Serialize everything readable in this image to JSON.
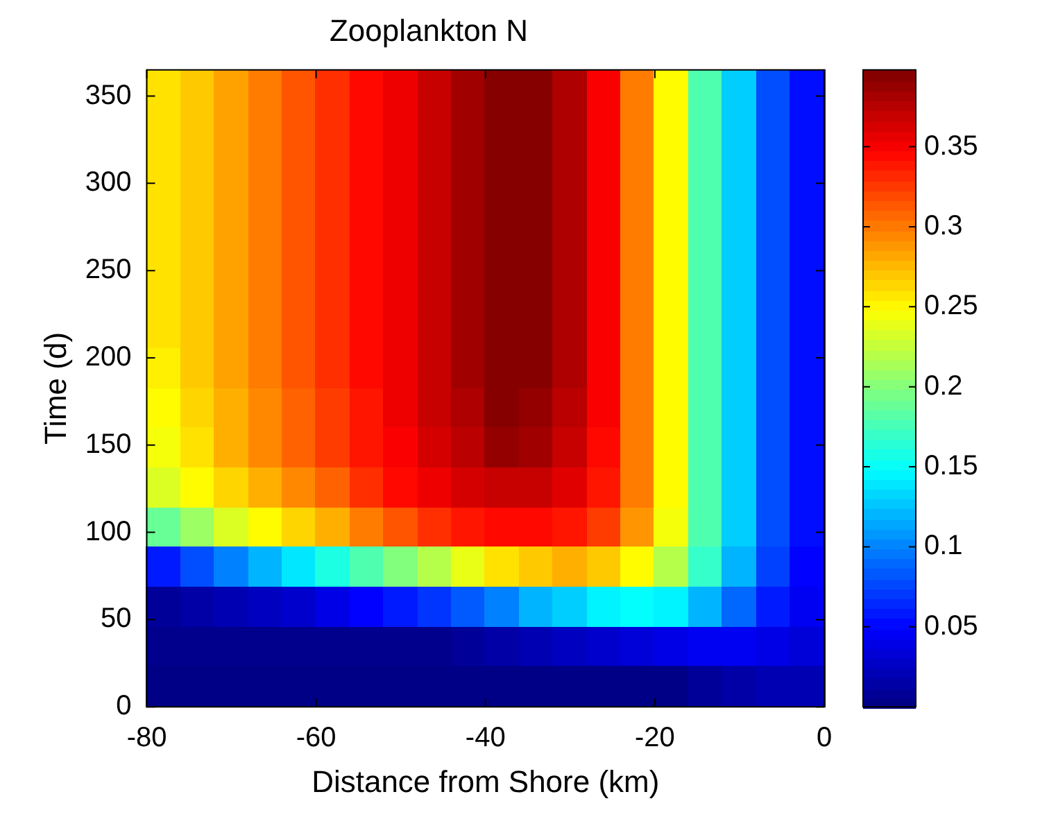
{
  "chart_data": {
    "type": "heatmap",
    "title": "Zooplankton N",
    "xlabel": "Distance from Shore (km)",
    "ylabel": "Time (d)",
    "x": [
      -78,
      -74,
      -70,
      -66,
      -62,
      -58,
      -54,
      -50,
      -46,
      -42,
      -38,
      -34,
      -30,
      -26,
      -22,
      -18,
      -14,
      -10,
      -6,
      -2
    ],
    "y": [
      353.6,
      330.8,
      308,
      285.2,
      262.3,
      239.5,
      216.7,
      193.9,
      171.1,
      148.3,
      125.5,
      102.7,
      79.8,
      57,
      34.2,
      11.4
    ],
    "xlim": [
      -80,
      0
    ],
    "xticks": [
      -80,
      -60,
      -40,
      -20,
      0
    ],
    "ylim": [
      0,
      365
    ],
    "yticks": [
      0,
      50,
      100,
      150,
      200,
      250,
      300,
      350
    ],
    "clim": [
      0,
      0.398
    ],
    "cticks": [
      0.05,
      0.1,
      0.15,
      0.2,
      0.25,
      0.3,
      0.35
    ],
    "cells": [
      [
        0.26,
        0.27,
        0.285,
        0.3,
        0.315,
        0.33,
        0.345,
        0.355,
        0.37,
        0.385,
        0.395,
        0.395,
        0.38,
        0.35,
        0.3,
        0.25,
        0.18,
        0.13,
        0.08,
        0.055
      ],
      [
        0.26,
        0.27,
        0.285,
        0.3,
        0.315,
        0.33,
        0.345,
        0.355,
        0.37,
        0.385,
        0.395,
        0.395,
        0.38,
        0.35,
        0.3,
        0.25,
        0.18,
        0.13,
        0.08,
        0.055
      ],
      [
        0.26,
        0.27,
        0.285,
        0.3,
        0.315,
        0.33,
        0.345,
        0.355,
        0.37,
        0.385,
        0.395,
        0.395,
        0.38,
        0.35,
        0.3,
        0.25,
        0.18,
        0.13,
        0.08,
        0.055
      ],
      [
        0.26,
        0.27,
        0.285,
        0.3,
        0.315,
        0.33,
        0.345,
        0.355,
        0.37,
        0.385,
        0.395,
        0.395,
        0.38,
        0.35,
        0.3,
        0.25,
        0.18,
        0.13,
        0.08,
        0.055
      ],
      [
        0.26,
        0.27,
        0.285,
        0.3,
        0.315,
        0.33,
        0.345,
        0.355,
        0.37,
        0.385,
        0.395,
        0.395,
        0.38,
        0.35,
        0.3,
        0.25,
        0.18,
        0.13,
        0.08,
        0.055
      ],
      [
        0.26,
        0.27,
        0.285,
        0.3,
        0.315,
        0.33,
        0.345,
        0.355,
        0.37,
        0.385,
        0.395,
        0.395,
        0.38,
        0.35,
        0.3,
        0.25,
        0.18,
        0.13,
        0.08,
        0.055
      ],
      [
        0.26,
        0.27,
        0.285,
        0.3,
        0.315,
        0.33,
        0.345,
        0.355,
        0.37,
        0.385,
        0.395,
        0.395,
        0.38,
        0.35,
        0.3,
        0.25,
        0.18,
        0.13,
        0.08,
        0.055
      ],
      [
        0.255,
        0.27,
        0.285,
        0.3,
        0.315,
        0.33,
        0.345,
        0.355,
        0.37,
        0.385,
        0.395,
        0.395,
        0.38,
        0.35,
        0.3,
        0.25,
        0.18,
        0.13,
        0.08,
        0.055
      ],
      [
        0.25,
        0.265,
        0.28,
        0.295,
        0.31,
        0.325,
        0.34,
        0.355,
        0.37,
        0.38,
        0.395,
        0.39,
        0.375,
        0.35,
        0.3,
        0.25,
        0.18,
        0.13,
        0.08,
        0.055
      ],
      [
        0.245,
        0.26,
        0.28,
        0.295,
        0.31,
        0.325,
        0.34,
        0.35,
        0.365,
        0.375,
        0.39,
        0.385,
        0.37,
        0.345,
        0.3,
        0.25,
        0.18,
        0.13,
        0.08,
        0.055
      ],
      [
        0.235,
        0.25,
        0.265,
        0.28,
        0.295,
        0.31,
        0.33,
        0.345,
        0.355,
        0.365,
        0.37,
        0.37,
        0.36,
        0.34,
        0.3,
        0.25,
        0.18,
        0.13,
        0.08,
        0.055
      ],
      [
        0.19,
        0.21,
        0.235,
        0.25,
        0.265,
        0.28,
        0.3,
        0.315,
        0.33,
        0.34,
        0.345,
        0.345,
        0.34,
        0.325,
        0.29,
        0.245,
        0.18,
        0.13,
        0.08,
        0.055
      ],
      [
        0.06,
        0.08,
        0.1,
        0.12,
        0.14,
        0.16,
        0.18,
        0.2,
        0.22,
        0.24,
        0.26,
        0.27,
        0.28,
        0.27,
        0.25,
        0.22,
        0.17,
        0.12,
        0.075,
        0.05
      ],
      [
        0.01,
        0.015,
        0.02,
        0.025,
        0.03,
        0.04,
        0.05,
        0.06,
        0.07,
        0.085,
        0.1,
        0.12,
        0.13,
        0.145,
        0.15,
        0.145,
        0.12,
        0.09,
        0.06,
        0.045
      ],
      [
        0.005,
        0.005,
        0.005,
        0.005,
        0.005,
        0.005,
        0.005,
        0.005,
        0.005,
        0.01,
        0.015,
        0.02,
        0.025,
        0.03,
        0.035,
        0.04,
        0.045,
        0.045,
        0.04,
        0.035
      ],
      [
        0.003,
        0.003,
        0.003,
        0.003,
        0.003,
        0.003,
        0.003,
        0.003,
        0.003,
        0.003,
        0.003,
        0.003,
        0.003,
        0.003,
        0.003,
        0.003,
        0.01,
        0.015,
        0.02,
        0.02
      ]
    ]
  }
}
